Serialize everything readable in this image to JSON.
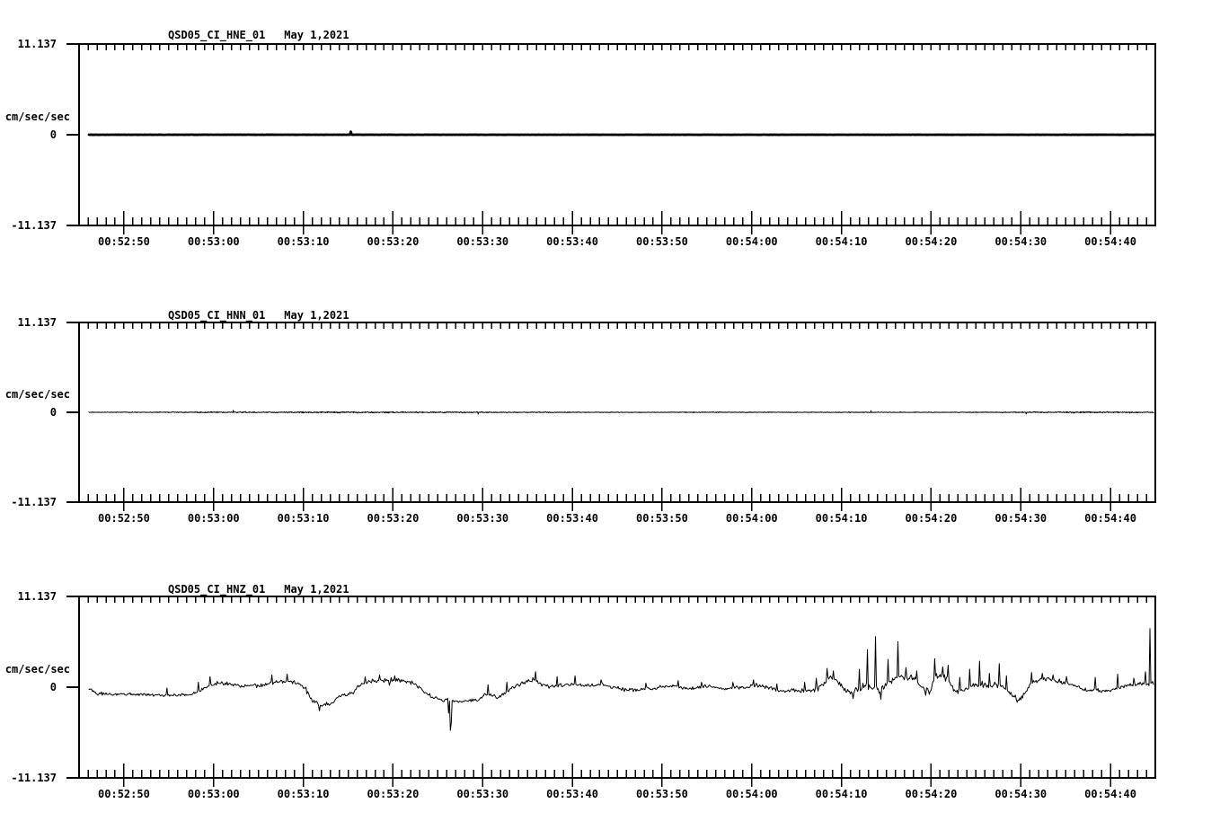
{
  "page": {
    "background": "#ffffff",
    "foreground": "#000000",
    "description": "Three-channel seismic accelerogram strip plot"
  },
  "chart_data": [
    {
      "type": "line",
      "title": "QSD05_CI_HNE_01",
      "date_label": "May 1,2021",
      "ylabel": "cm/sec/sec",
      "ytick_labels": [
        "11.137",
        "0",
        "-11.137"
      ],
      "ylim": [
        -11.137,
        11.137
      ],
      "x_start": "00:52:45",
      "x_end": "00:54:45",
      "x_tick_labels": [
        "00:52:50",
        "00:53:00",
        "00:53:10",
        "00:53:20",
        "00:53:30",
        "00:53:40",
        "00:53:50",
        "00:54:00",
        "00:54:10",
        "00:54:20",
        "00:54:30",
        "00:54:40"
      ],
      "x_minor_tick_interval_s": 1,
      "x_major_tick_interval_s": 10,
      "line_width": 2.8,
      "series": {
        "start_s": 1.1,
        "end_s": 119.8,
        "sample_step_s": 0.1,
        "mean_keyframes": [
          [
            1.1,
            0.0
          ],
          [
            119.8,
            0.0
          ]
        ],
        "noise_amp_keyframes": [
          [
            1.1,
            0.02
          ],
          [
            119.8,
            0.02
          ]
        ],
        "spikes": [
          [
            30.3,
            0.38
          ]
        ]
      }
    },
    {
      "type": "line",
      "title": "QSD05_CI_HNN_01",
      "date_label": "May 1,2021",
      "ylabel": "cm/sec/sec",
      "ytick_labels": [
        "11.137",
        "0",
        "-11.137"
      ],
      "ylim": [
        -11.137,
        11.137
      ],
      "x_start": "00:52:45",
      "x_end": "00:54:45",
      "x_tick_labels": [
        "00:52:50",
        "00:53:00",
        "00:53:10",
        "00:53:20",
        "00:53:30",
        "00:53:40",
        "00:53:50",
        "00:54:00",
        "00:54:10",
        "00:54:20",
        "00:54:30",
        "00:54:40"
      ],
      "x_minor_tick_interval_s": 1,
      "x_major_tick_interval_s": 10,
      "line_width": 1,
      "series": {
        "start_s": 1.1,
        "end_s": 119.8,
        "sample_step_s": 0.05,
        "mean_keyframes": [
          [
            1.1,
            0.0
          ],
          [
            119.8,
            0.0
          ]
        ],
        "noise_amp_keyframes": [
          [
            1.1,
            0.05
          ],
          [
            8,
            0.06
          ],
          [
            14,
            0.09
          ],
          [
            20,
            0.11
          ],
          [
            28,
            0.12
          ],
          [
            36,
            0.11
          ],
          [
            44,
            0.1
          ],
          [
            52,
            0.08
          ],
          [
            58,
            0.06
          ],
          [
            63,
            0.05
          ],
          [
            68,
            0.08
          ],
          [
            73,
            0.07
          ],
          [
            78,
            0.06
          ],
          [
            84,
            0.07
          ],
          [
            90,
            0.06
          ],
          [
            96,
            0.06
          ],
          [
            102,
            0.07
          ],
          [
            106,
            0.09
          ],
          [
            110,
            0.12
          ],
          [
            114,
            0.12
          ],
          [
            118,
            0.1
          ],
          [
            119.8,
            0.1
          ]
        ],
        "spikes": [
          [
            17.2,
            0.25
          ],
          [
            44.5,
            -0.22
          ],
          [
            88.3,
            0.2
          ],
          [
            105.6,
            -0.2
          ]
        ]
      }
    },
    {
      "type": "line",
      "title": "QSD05_CI_HNZ_01",
      "date_label": "May 1,2021",
      "ylabel": "cm/sec/sec",
      "ytick_labels": [
        "11.137",
        "0",
        "-11.137"
      ],
      "ylim": [
        -11.137,
        11.137
      ],
      "x_start": "00:52:45",
      "x_end": "00:54:45",
      "x_tick_labels": [
        "00:52:50",
        "00:53:00",
        "00:53:10",
        "00:53:20",
        "00:53:30",
        "00:53:40",
        "00:53:50",
        "00:54:00",
        "00:54:10",
        "00:54:20",
        "00:54:30",
        "00:54:40"
      ],
      "x_minor_tick_interval_s": 1,
      "x_major_tick_interval_s": 10,
      "line_width": 1,
      "series": {
        "start_s": 1.1,
        "end_s": 119.8,
        "sample_step_s": 0.1,
        "mean_keyframes": [
          [
            1.1,
            -0.2
          ],
          [
            2,
            -0.8
          ],
          [
            4,
            -0.9
          ],
          [
            6,
            -0.85
          ],
          [
            8,
            -0.95
          ],
          [
            10,
            -1.0
          ],
          [
            12,
            -0.9
          ],
          [
            13,
            -0.7
          ],
          [
            14,
            -0.1
          ],
          [
            15,
            0.45
          ],
          [
            16,
            0.5
          ],
          [
            17,
            0.3
          ],
          [
            18.5,
            0.15
          ],
          [
            20,
            0.25
          ],
          [
            21,
            0.45
          ],
          [
            22,
            0.65
          ],
          [
            23,
            0.7
          ],
          [
            24,
            0.6
          ],
          [
            25,
            0.1
          ],
          [
            26,
            -1.6
          ],
          [
            27,
            -2.2
          ],
          [
            28,
            -2.1
          ],
          [
            29,
            -1.1
          ],
          [
            30,
            -1.0
          ],
          [
            30.8,
            -0.3
          ],
          [
            31.5,
            0.5
          ],
          [
            32.5,
            0.75
          ],
          [
            34,
            0.8
          ],
          [
            35.5,
            0.85
          ],
          [
            36.5,
            0.7
          ],
          [
            37.5,
            0.4
          ],
          [
            38.5,
            -0.6
          ],
          [
            39.5,
            -1.3
          ],
          [
            40.5,
            -1.6
          ],
          [
            41.1,
            -1.5
          ],
          [
            41.35,
            -1.6
          ],
          [
            41.8,
            -1.7
          ],
          [
            43,
            -1.75
          ],
          [
            44.5,
            -1.6
          ],
          [
            45.3,
            -0.9
          ],
          [
            46,
            -1.0
          ],
          [
            46.6,
            -1.3
          ],
          [
            47.2,
            -1.0
          ],
          [
            48,
            -0.4
          ],
          [
            49,
            0.3
          ],
          [
            50,
            0.7
          ],
          [
            50.8,
            0.9
          ],
          [
            51.6,
            0.4
          ],
          [
            52.5,
            0.1
          ],
          [
            53.5,
            0.25
          ],
          [
            54.5,
            0.4
          ],
          [
            55.5,
            0.45
          ],
          [
            56.5,
            0.15
          ],
          [
            57.5,
            0.2
          ],
          [
            58.5,
            0.25
          ],
          [
            59.5,
            0.0
          ],
          [
            60.5,
            -0.2
          ],
          [
            62,
            -0.35
          ],
          [
            64,
            -0.15
          ],
          [
            66,
            0.2
          ],
          [
            68,
            -0.2
          ],
          [
            70,
            0.1
          ],
          [
            72,
            -0.15
          ],
          [
            74,
            0.0
          ],
          [
            76,
            0.2
          ],
          [
            77.5,
            -0.2
          ],
          [
            78.5,
            -0.5
          ],
          [
            80,
            -0.45
          ],
          [
            82,
            -0.4
          ],
          [
            82.8,
            0.3
          ],
          [
            83.8,
            1.3
          ],
          [
            84.6,
            0.8
          ],
          [
            85.3,
            -0.3
          ],
          [
            86,
            -0.6
          ],
          [
            86.8,
            -0.3
          ],
          [
            87.6,
            0.2
          ],
          [
            88.5,
            0.1
          ],
          [
            89.3,
            -0.4
          ],
          [
            90,
            0.3
          ],
          [
            90.8,
            0.9
          ],
          [
            91.6,
            1.3
          ],
          [
            92.5,
            1.2
          ],
          [
            93.3,
            0.9
          ],
          [
            94.2,
            -0.3
          ],
          [
            94.8,
            -0.6
          ],
          [
            95.5,
            1.2
          ],
          [
            96.2,
            1.4
          ],
          [
            96.8,
            1.1
          ],
          [
            97.5,
            -0.2
          ],
          [
            98.3,
            -0.5
          ],
          [
            99,
            -0.3
          ],
          [
            99.8,
            0.3
          ],
          [
            100.6,
            0.4
          ],
          [
            101.4,
            0.1
          ],
          [
            102.2,
            0.3
          ],
          [
            103,
            0.2
          ],
          [
            103.8,
            -0.7
          ],
          [
            104.6,
            -1.7
          ],
          [
            105.3,
            -1.0
          ],
          [
            106,
            0.2
          ],
          [
            106.8,
            0.7
          ],
          [
            107.5,
            1.0
          ],
          [
            108.3,
            0.9
          ],
          [
            109.2,
            0.7
          ],
          [
            110,
            0.45
          ],
          [
            111,
            0.2
          ],
          [
            112,
            -0.3
          ],
          [
            113.5,
            -0.5
          ],
          [
            115,
            -0.4
          ],
          [
            116,
            -0.1
          ],
          [
            117,
            0.25
          ],
          [
            118,
            0.35
          ],
          [
            119,
            0.4
          ],
          [
            119.8,
            0.6
          ]
        ],
        "noise_amp_keyframes": [
          [
            1.1,
            0.25
          ],
          [
            10,
            0.25
          ],
          [
            13,
            0.35
          ],
          [
            17,
            0.35
          ],
          [
            21,
            0.4
          ],
          [
            25,
            0.35
          ],
          [
            29,
            0.3
          ],
          [
            33,
            0.45
          ],
          [
            38,
            0.35
          ],
          [
            42,
            0.25
          ],
          [
            46,
            0.3
          ],
          [
            50,
            0.45
          ],
          [
            54,
            0.4
          ],
          [
            58,
            0.35
          ],
          [
            62,
            0.3
          ],
          [
            68,
            0.3
          ],
          [
            74,
            0.3
          ],
          [
            79,
            0.35
          ],
          [
            83,
            0.5
          ],
          [
            86,
            0.55
          ],
          [
            88,
            0.7
          ],
          [
            92,
            0.6
          ],
          [
            96,
            0.55
          ],
          [
            100,
            0.55
          ],
          [
            104,
            0.45
          ],
          [
            107,
            0.5
          ],
          [
            110,
            0.4
          ],
          [
            113,
            0.3
          ],
          [
            116,
            0.3
          ],
          [
            119.8,
            0.35
          ]
        ],
        "spikes": [
          [
            9.8,
            -0.1
          ],
          [
            13.3,
            0.6
          ],
          [
            14.6,
            1.3
          ],
          [
            21.5,
            1.5
          ],
          [
            23.2,
            1.6
          ],
          [
            26.8,
            -2.9
          ],
          [
            31.9,
            1.3
          ],
          [
            33.5,
            1.5
          ],
          [
            35.2,
            1.4
          ],
          [
            41.25,
            -3.2
          ],
          [
            41.35,
            -5.3
          ],
          [
            41.45,
            -4.4
          ],
          [
            45.6,
            0.3
          ],
          [
            47.7,
            0.6
          ],
          [
            50.9,
            1.9
          ],
          [
            53.3,
            1.3
          ],
          [
            55.3,
            1.4
          ],
          [
            58.2,
            0.9
          ],
          [
            63.2,
            0.5
          ],
          [
            66.8,
            0.8
          ],
          [
            69.4,
            0.6
          ],
          [
            72.9,
            0.6
          ],
          [
            75.2,
            0.9
          ],
          [
            77.8,
            0.4
          ],
          [
            80.9,
            0.6
          ],
          [
            82.2,
            1.1
          ],
          [
            83.4,
            2.3
          ],
          [
            84.1,
            2.0
          ],
          [
            86.3,
            -1.4
          ],
          [
            87.0,
            2.2
          ],
          [
            87.9,
            4.6
          ],
          [
            88.8,
            6.2
          ],
          [
            89.4,
            -1.5
          ],
          [
            90.2,
            3.4
          ],
          [
            91.3,
            5.6
          ],
          [
            92.2,
            2.4
          ],
          [
            93.4,
            2.0
          ],
          [
            94.4,
            -1.0
          ],
          [
            95.4,
            3.5
          ],
          [
            96.3,
            2.5
          ],
          [
            96.9,
            2.7
          ],
          [
            98.2,
            1.2
          ],
          [
            99.3,
            2.2
          ],
          [
            100.4,
            3.2
          ],
          [
            101.5,
            1.7
          ],
          [
            102.6,
            2.9
          ],
          [
            103.4,
            1.4
          ],
          [
            106.2,
            1.8
          ],
          [
            107.4,
            1.7
          ],
          [
            108.6,
            1.5
          ],
          [
            110.1,
            1.3
          ],
          [
            113.3,
            1.2
          ],
          [
            115.8,
            1.6
          ],
          [
            117.6,
            1.1
          ],
          [
            118.9,
            1.9
          ],
          [
            119.35,
            7.2
          ]
        ]
      }
    }
  ]
}
